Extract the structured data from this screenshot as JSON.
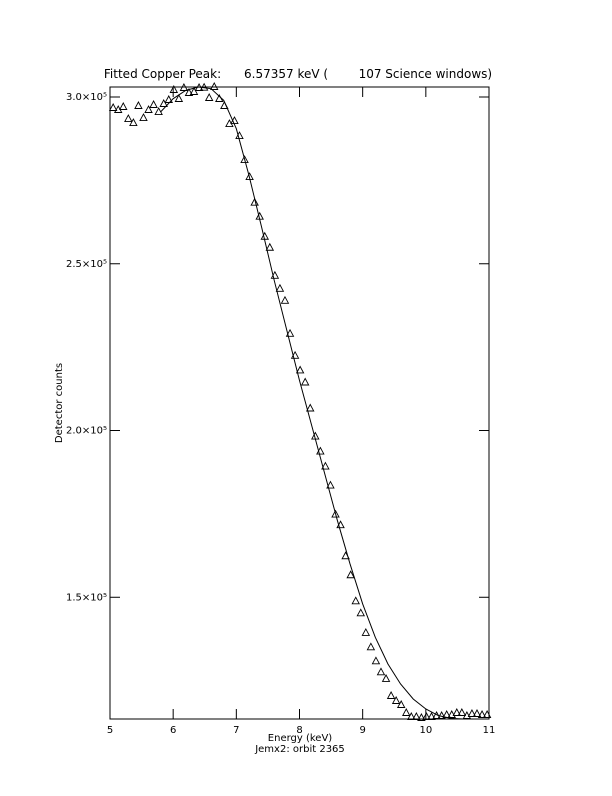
{
  "chart_data": {
    "type": "scatter",
    "title": "Fitted Copper Peak:      6.57357 keV (        107 Science windows)",
    "xlabel": "Energy (keV)",
    "ylabel": "Detector counts",
    "subtitle": "Jemx2: orbit 2365",
    "color": "#000000",
    "xlim": [
      5,
      11
    ],
    "xticks": [
      5,
      6,
      7,
      8,
      9,
      10,
      11
    ],
    "ylim": [
      113500,
      303000
    ],
    "yticks": [
      {
        "value": 150000,
        "label": "1.5×10⁵"
      },
      {
        "value": 200000,
        "label": "2.0×10⁵"
      },
      {
        "value": 250000,
        "label": "2.5×10⁵"
      },
      {
        "value": 300000,
        "label": "3.0×10⁵"
      }
    ],
    "x": [
      5.05,
      5.13,
      5.21,
      5.29,
      5.37,
      5.45,
      5.53,
      5.61,
      5.69,
      5.77,
      5.85,
      5.93,
      6.01,
      6.09,
      6.17,
      6.25,
      6.33,
      6.41,
      6.49,
      6.57,
      6.65,
      6.73,
      6.81,
      6.89,
      6.97,
      7.05,
      7.13,
      7.21,
      7.29,
      7.37,
      7.45,
      7.53,
      7.61,
      7.69,
      7.77,
      7.85,
      7.93,
      8.01,
      8.09,
      8.17,
      8.25,
      8.33,
      8.41,
      8.49,
      8.57,
      8.65,
      8.73,
      8.81,
      8.89,
      8.97,
      9.05,
      9.13,
      9.21,
      9.29,
      9.37,
      9.45,
      9.53,
      9.61,
      9.69,
      9.77,
      9.85,
      9.93,
      10.01,
      10.09,
      10.17,
      10.25,
      10.33,
      10.41,
      10.49,
      10.57,
      10.65,
      10.73,
      10.81,
      10.89,
      10.97
    ],
    "values": [
      296700,
      296100,
      297000,
      293400,
      292200,
      297300,
      293700,
      296100,
      297600,
      295500,
      297900,
      299100,
      302100,
      299400,
      302700,
      301200,
      301500,
      302700,
      302800,
      299700,
      303000,
      299400,
      297300,
      291900,
      292800,
      288300,
      281100,
      276000,
      268300,
      264100,
      258100,
      254800,
      246400,
      242500,
      238900,
      229000,
      222400,
      218000,
      214400,
      206600,
      198200,
      193700,
      189200,
      183500,
      174800,
      171600,
      162300,
      156600,
      148800,
      145200,
      139300,
      135000,
      130800,
      127500,
      125500,
      120400,
      118900,
      117700,
      115300,
      114100,
      114100,
      113800,
      114100,
      114100,
      114400,
      114400,
      114700,
      114700,
      115300,
      115300,
      114400,
      115000,
      115000,
      114700,
      114700
    ],
    "fit": {
      "x": [
        5.8,
        6.0,
        6.2,
        6.4,
        6.6,
        6.8,
        7.0,
        7.2,
        7.4,
        7.6,
        7.8,
        8.0,
        8.2,
        8.4,
        8.6,
        8.8,
        9.0,
        9.2,
        9.4,
        9.6,
        9.8,
        10.0,
        10.2,
        10.4,
        10.6,
        10.8,
        11.0
      ],
      "values": [
        295500,
        299500,
        302000,
        303000,
        302500,
        299000,
        290500,
        276500,
        261000,
        245000,
        230000,
        215000,
        201000,
        187000,
        173000,
        160000,
        148000,
        138000,
        130000,
        124000,
        119500,
        116500,
        114500,
        113700,
        113500,
        113500,
        113500
      ]
    }
  }
}
